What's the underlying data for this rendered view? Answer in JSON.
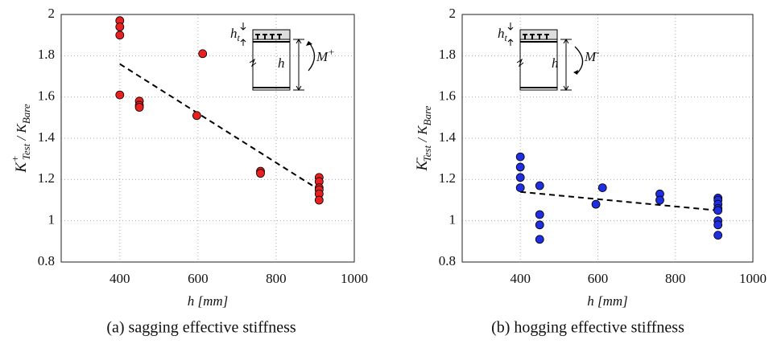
{
  "chart_data": [
    {
      "type": "scatter",
      "caption": "(a)   sagging effective stiffness",
      "xlabel": "h [mm]",
      "ylabel": {
        "k": "K",
        "sup": "+",
        "sub": "Test",
        "slash": " / ",
        "k2": "K",
        "sub2": "Bare"
      },
      "xlim": [
        250,
        1000
      ],
      "xticks": [
        400,
        600,
        800,
        1000
      ],
      "ylim": [
        0.8,
        2
      ],
      "yticks": [
        0.8,
        1,
        1.2,
        1.4,
        1.6,
        1.8,
        2
      ],
      "grid": true,
      "series": [
        {
          "color": "#e8201f",
          "x": [
            400,
            400,
            400,
            400,
            450,
            450,
            450,
            597,
            612,
            760,
            760,
            910,
            910,
            910,
            910,
            910,
            910
          ],
          "values": [
            1.97,
            1.94,
            1.9,
            1.61,
            1.58,
            1.56,
            1.55,
            1.51,
            1.81,
            1.24,
            1.23,
            1.21,
            1.19,
            1.16,
            1.15,
            1.13,
            1.1
          ]
        }
      ],
      "trend": {
        "x": [
          400,
          910
        ],
        "values": [
          1.76,
          1.15
        ]
      },
      "inset": {
        "ht": "h",
        "ht_sub": "t",
        "h": "h",
        "m": "M",
        "m_sign": "+"
      }
    },
    {
      "type": "scatter",
      "caption": "(b) hogging effective stiffness",
      "xlabel": "h [mm]",
      "ylabel": {
        "k": "K",
        "sup": "-",
        "sub": "Test",
        "slash": " / ",
        "k2": "K",
        "sub2": "Bare"
      },
      "xlim": [
        250,
        1000
      ],
      "xticks": [
        400,
        600,
        800,
        1000
      ],
      "ylim": [
        0.8,
        2
      ],
      "yticks": [
        0.8,
        1,
        1.2,
        1.4,
        1.6,
        1.8,
        2
      ],
      "grid": true,
      "series": [
        {
          "color": "#1e2ee0",
          "x": [
            400,
            400,
            400,
            400,
            450,
            450,
            450,
            450,
            595,
            612,
            760,
            760,
            910,
            910,
            910,
            910,
            910,
            910,
            910,
            910
          ],
          "values": [
            1.31,
            1.26,
            1.21,
            1.16,
            1.17,
            1.03,
            0.98,
            0.91,
            1.08,
            1.16,
            1.13,
            1.1,
            1.11,
            1.1,
            1.08,
            1.06,
            1.05,
            1.0,
            0.98,
            0.93
          ]
        }
      ],
      "trend": {
        "x": [
          400,
          910
        ],
        "values": [
          1.14,
          1.05
        ]
      },
      "inset": {
        "ht": "h",
        "ht_sub": "t",
        "h": "h",
        "m": "M",
        "m_sign": "-"
      }
    }
  ]
}
